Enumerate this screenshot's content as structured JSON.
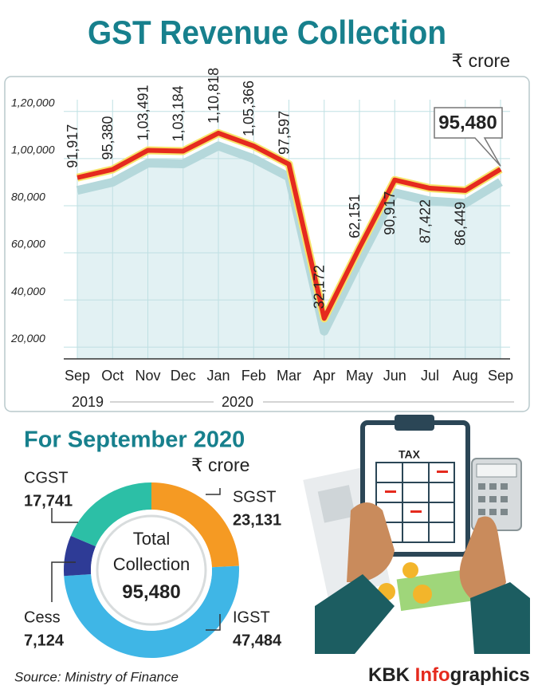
{
  "chart_data": [
    {
      "type": "line",
      "title": "GST Revenue Collection",
      "unit": "₹ crore",
      "categories": [
        "Sep",
        "Oct",
        "Nov",
        "Dec",
        "Jan",
        "Feb",
        "Mar",
        "Apr",
        "May",
        "Jun",
        "Jul",
        "Aug",
        "Sep"
      ],
      "year_labels": [
        "2019",
        "2020"
      ],
      "values": [
        91917,
        95380,
        103491,
        103184,
        110818,
        105366,
        97597,
        32172,
        62151,
        90917,
        87422,
        86449,
        95480
      ],
      "value_labels": [
        "91,917",
        "95,380",
        "1,03,491",
        "1,03,184",
        "1,10,818",
        "1,05,366",
        "97,597",
        "32,172",
        "62,151",
        "90,917",
        "87,422",
        "86,449",
        "95,480"
      ],
      "color": "#e52a1e",
      "ylim": [
        15000,
        125000
      ],
      "yticks": [
        {
          "value": 20000,
          "label": "20,000"
        },
        {
          "value": 40000,
          "label": "40,000"
        },
        {
          "value": 60000,
          "label": "60,000"
        },
        {
          "value": 80000,
          "label": "80,000"
        },
        {
          "value": 100000,
          "label": "1,00,000"
        },
        {
          "value": 120000,
          "label": "1,20,000"
        }
      ],
      "grid": true
    },
    {
      "type": "donut",
      "title": "For September 2020",
      "unit": "₹ crore",
      "center_label": "Total Collection",
      "total": "95,480",
      "categories": [
        "SGST",
        "IGST",
        "Cess",
        "CGST"
      ],
      "values": [
        23131,
        47484,
        7124,
        17741
      ],
      "value_labels": [
        "23,131",
        "47,484",
        "7,124",
        "17,741"
      ],
      "colors": [
        "#f59a23",
        "#3fb6e6",
        "#2e3b96",
        "#2cbfa6"
      ]
    }
  ],
  "illustration_label": "TAX",
  "source": "Source: Ministry of Finance",
  "brand": [
    "KBK ",
    "Info",
    "graphics"
  ]
}
